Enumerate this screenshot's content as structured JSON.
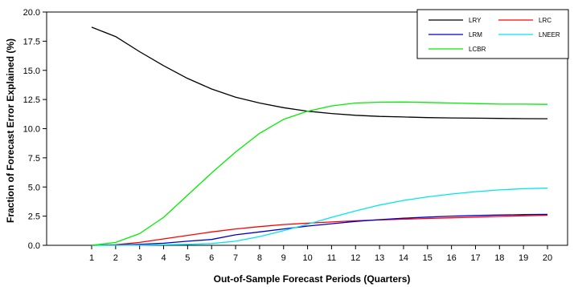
{
  "chart_data": {
    "type": "line",
    "title": "",
    "xlabel": "Out-of-Sample Forecast Periods (Quarters)",
    "ylabel": "Fraction of Forecast Error Explained (%)",
    "ylim": [
      0,
      20
    ],
    "yticks": [
      "0.0",
      "2.5",
      "5.0",
      "7.5",
      "10.0",
      "12.5",
      "15.0",
      "17.5",
      "20.0"
    ],
    "x": [
      "1",
      "2",
      "3",
      "4",
      "5",
      "6",
      "7",
      "8",
      "9",
      "10",
      "11",
      "12",
      "13",
      "14",
      "15",
      "16",
      "17",
      "18",
      "19",
      "20"
    ],
    "grid": false,
    "legend_position": "top-right",
    "series": [
      {
        "name": "LRY",
        "color": "#000000",
        "values": [
          18.7,
          17.9,
          16.6,
          15.4,
          14.3,
          13.4,
          12.7,
          12.2,
          11.8,
          11.5,
          11.3,
          11.15,
          11.05,
          11.0,
          10.95,
          10.92,
          10.9,
          10.88,
          10.86,
          10.85
        ]
      },
      {
        "name": "LRC",
        "color": "#ff0000",
        "values": [
          0.0,
          0.05,
          0.25,
          0.55,
          0.85,
          1.15,
          1.4,
          1.6,
          1.78,
          1.9,
          2.0,
          2.1,
          2.18,
          2.24,
          2.3,
          2.36,
          2.42,
          2.48,
          2.53,
          2.58
        ]
      },
      {
        "name": "LRM",
        "color": "#0000cc",
        "values": [
          0.0,
          0.02,
          0.08,
          0.18,
          0.35,
          0.5,
          0.9,
          1.15,
          1.4,
          1.65,
          1.85,
          2.05,
          2.2,
          2.32,
          2.42,
          2.5,
          2.56,
          2.6,
          2.63,
          2.65
        ]
      },
      {
        "name": "LNEER",
        "color": "#00e5ee",
        "values": [
          0.0,
          0.0,
          0.02,
          0.05,
          0.08,
          0.15,
          0.35,
          0.75,
          1.25,
          1.8,
          2.4,
          2.95,
          3.45,
          3.85,
          4.15,
          4.4,
          4.6,
          4.75,
          4.85,
          4.9
        ]
      },
      {
        "name": "LCBR",
        "color": "#00ee00",
        "values": [
          0.0,
          0.25,
          1.0,
          2.4,
          4.3,
          6.2,
          8.0,
          9.6,
          10.8,
          11.5,
          11.95,
          12.2,
          12.27,
          12.28,
          12.25,
          12.2,
          12.15,
          12.1,
          12.1,
          12.08
        ]
      }
    ]
  }
}
